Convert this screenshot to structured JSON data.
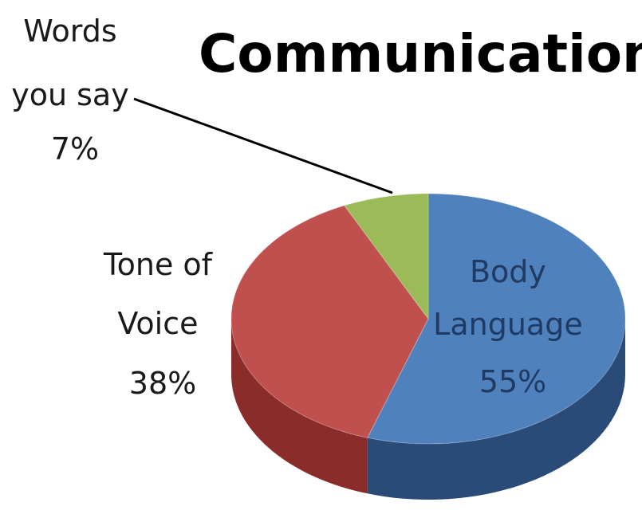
{
  "chart_data": {
    "type": "pie",
    "style": "3d",
    "title": "Communication",
    "slices": [
      {
        "label_lines": [
          "Body",
          "Language"
        ],
        "value": 55,
        "value_label": "55%",
        "color": "#4f81bd",
        "side_color": "#2a4a78"
      },
      {
        "label_lines": [
          "Tone of",
          "Voice"
        ],
        "value": 38,
        "value_label": "38%",
        "color": "#c0504d",
        "side_color": "#8a2c2a"
      },
      {
        "label_lines": [
          "Words",
          "you say"
        ],
        "value": 7,
        "value_label": "7%",
        "color": "#9bbb59",
        "side_color": "#6a8a36"
      }
    ],
    "legend": "none"
  }
}
